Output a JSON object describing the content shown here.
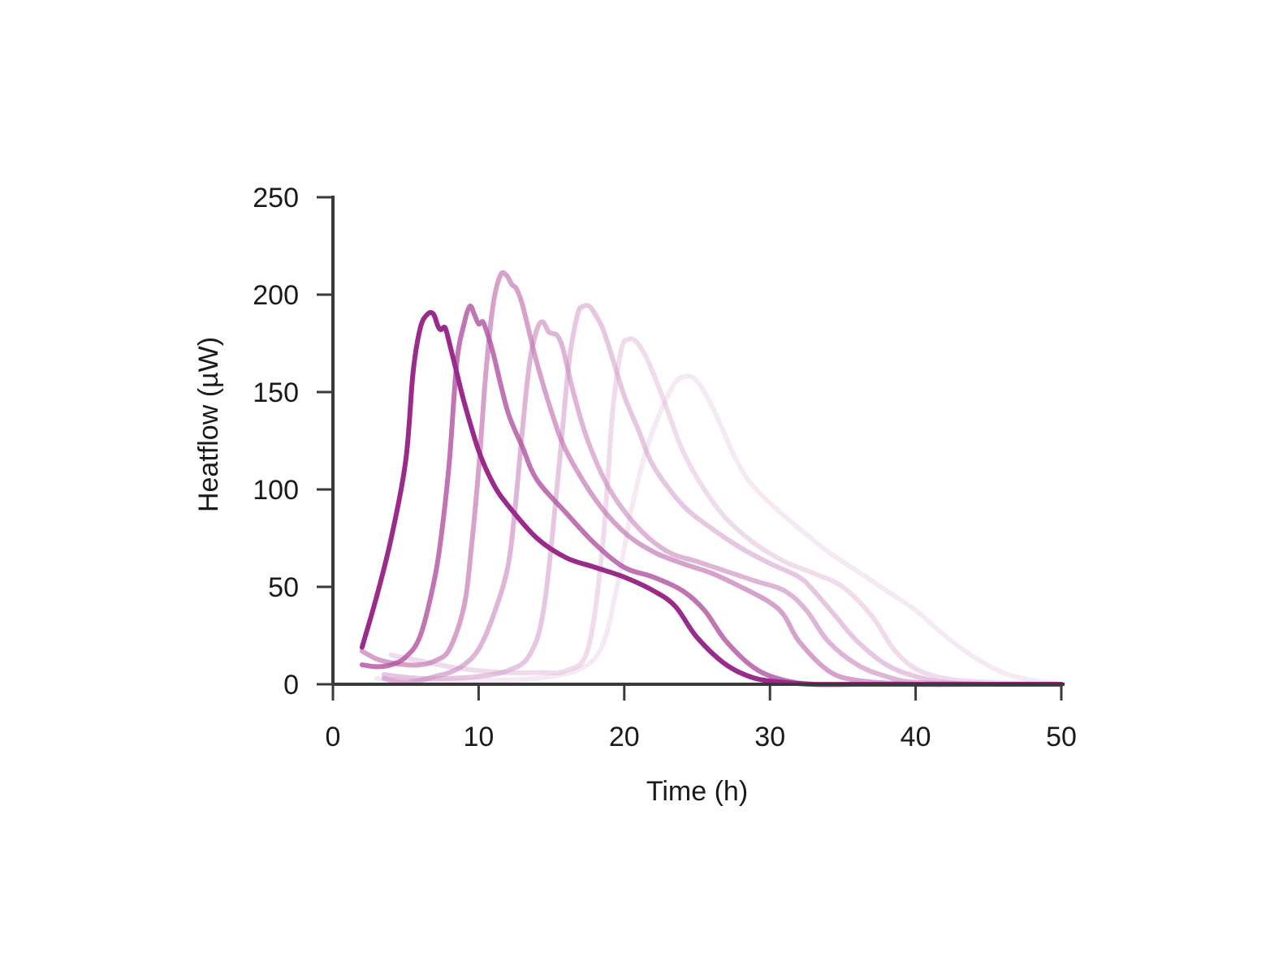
{
  "chart_data": {
    "type": "line",
    "title": "",
    "xlabel": "Time (h)",
    "ylabel": "Heatflow (µW)",
    "xlim": [
      0,
      50
    ],
    "ylim": [
      0,
      250
    ],
    "xticks": [
      0,
      10,
      20,
      30,
      40,
      50
    ],
    "yticks": [
      0,
      50,
      100,
      150,
      200,
      250
    ],
    "grid": false,
    "legend": "none",
    "series": [
      {
        "color": "#9b2b8a",
        "opacity": 1.0,
        "x": [
          2,
          3,
          4,
          5,
          5.5,
          6,
          6.5,
          6.9,
          7.2,
          7.4,
          7.7,
          8,
          8.5,
          9,
          10,
          11,
          12,
          14,
          16,
          18,
          20,
          22,
          23.5,
          25,
          27,
          29,
          31,
          33,
          36,
          40,
          45,
          50
        ],
        "y": [
          19,
          45,
          75,
          115,
          160,
          183,
          190,
          190,
          184,
          182,
          183,
          175,
          160,
          145,
          120,
          103,
          92,
          75,
          65,
          60,
          55,
          48,
          40,
          24,
          10,
          3,
          1,
          0,
          0,
          0,
          0,
          0
        ]
      },
      {
        "color": "#b0529f",
        "opacity": 0.8,
        "x": [
          2,
          3,
          4,
          5,
          6,
          7,
          7.5,
          8,
          8.5,
          9,
          9.4,
          9.7,
          10,
          10.3,
          10.6,
          11,
          12,
          13,
          14,
          16,
          18,
          20,
          22,
          24,
          25.5,
          27,
          29,
          31,
          33,
          36,
          40,
          45,
          50
        ],
        "y": [
          10,
          9,
          10,
          14,
          25,
          55,
          80,
          115,
          165,
          185,
          194,
          190,
          185,
          186,
          180,
          170,
          140,
          122,
          105,
          88,
          72,
          60,
          55,
          48,
          38,
          22,
          8,
          2,
          0,
          0,
          0,
          0,
          0
        ]
      },
      {
        "color": "#c57ab5",
        "opacity": 0.7,
        "x": [
          2,
          3,
          4,
          5,
          6,
          7,
          8,
          9,
          9.5,
          10,
          10.5,
          11,
          11.5,
          11.9,
          12.3,
          12.6,
          13,
          13.5,
          14,
          15,
          16,
          18,
          20,
          22,
          24,
          26,
          28,
          30,
          31,
          32,
          34,
          36,
          40,
          45,
          50
        ],
        "y": [
          17,
          13,
          11,
          10,
          10,
          12,
          18,
          40,
          70,
          110,
          160,
          195,
          210,
          210,
          205,
          203,
          195,
          180,
          165,
          140,
          120,
          95,
          78,
          68,
          62,
          57,
          50,
          42,
          35,
          22,
          7,
          2,
          0,
          0,
          0
        ]
      },
      {
        "color": "#cd8dc1",
        "opacity": 0.65,
        "x": [
          3.5,
          4,
          5,
          6,
          7,
          8,
          9,
          10,
          11,
          12,
          12.5,
          13,
          13.5,
          14,
          14.4,
          14.8,
          15.1,
          15.4,
          15.8,
          16.5,
          17.5,
          19,
          21,
          23,
          25,
          27,
          29,
          31,
          32.5,
          34,
          36,
          38,
          40,
          45,
          50
        ],
        "y": [
          3,
          2,
          1,
          2,
          4,
          6,
          10,
          18,
          35,
          60,
          90,
          130,
          165,
          182,
          186,
          181,
          180,
          179,
          172,
          150,
          125,
          100,
          80,
          68,
          63,
          58,
          53,
          48,
          38,
          22,
          10,
          4,
          1,
          0,
          0
        ]
      },
      {
        "color": "#d6a2cd",
        "opacity": 0.6,
        "x": [
          3.5,
          4.5,
          6,
          8,
          10,
          12,
          13.5,
          14.5,
          15.5,
          16.2,
          16.8,
          17.2,
          17.6,
          18,
          18.5,
          19,
          20,
          21,
          22,
          24,
          26,
          28,
          30,
          32,
          33,
          34.5,
          36,
          38,
          40,
          42,
          45,
          50
        ],
        "y": [
          5,
          4,
          3,
          3,
          4,
          7,
          15,
          40,
          110,
          165,
          190,
          194,
          194,
          190,
          183,
          172,
          148,
          130,
          112,
          92,
          80,
          70,
          62,
          55,
          48,
          35,
          22,
          10,
          4,
          1,
          0,
          0
        ]
      },
      {
        "color": "#e2bddb",
        "opacity": 0.55,
        "x": [
          4,
          6,
          8,
          10,
          12,
          14,
          16,
          17.5,
          18.5,
          19.2,
          19.8,
          20.3,
          20.8,
          21.5,
          22.5,
          24,
          25.5,
          27,
          29,
          31,
          33,
          35,
          37,
          38.5,
          40,
          42,
          45,
          50
        ],
        "y": [
          15,
          12,
          9,
          7,
          6,
          6,
          7,
          18,
          70,
          140,
          172,
          177,
          176,
          168,
          150,
          120,
          100,
          85,
          72,
          63,
          57,
          50,
          35,
          18,
          8,
          3,
          1,
          0
        ]
      },
      {
        "color": "#ecd3e7",
        "opacity": 0.5,
        "x": [
          3,
          6,
          10,
          14,
          17,
          18.5,
          19.5,
          20.5,
          21.5,
          22.5,
          23.5,
          24.2,
          24.8,
          25.5,
          26.5,
          27.5,
          28.5,
          30,
          32,
          34,
          36,
          38,
          40,
          42,
          44,
          46,
          48,
          50
        ],
        "y": [
          3,
          2,
          2,
          3,
          8,
          20,
          50,
          90,
          120,
          140,
          155,
          158,
          157,
          150,
          135,
          118,
          105,
          93,
          80,
          68,
          58,
          48,
          38,
          25,
          14,
          6,
          2,
          0
        ]
      }
    ]
  }
}
